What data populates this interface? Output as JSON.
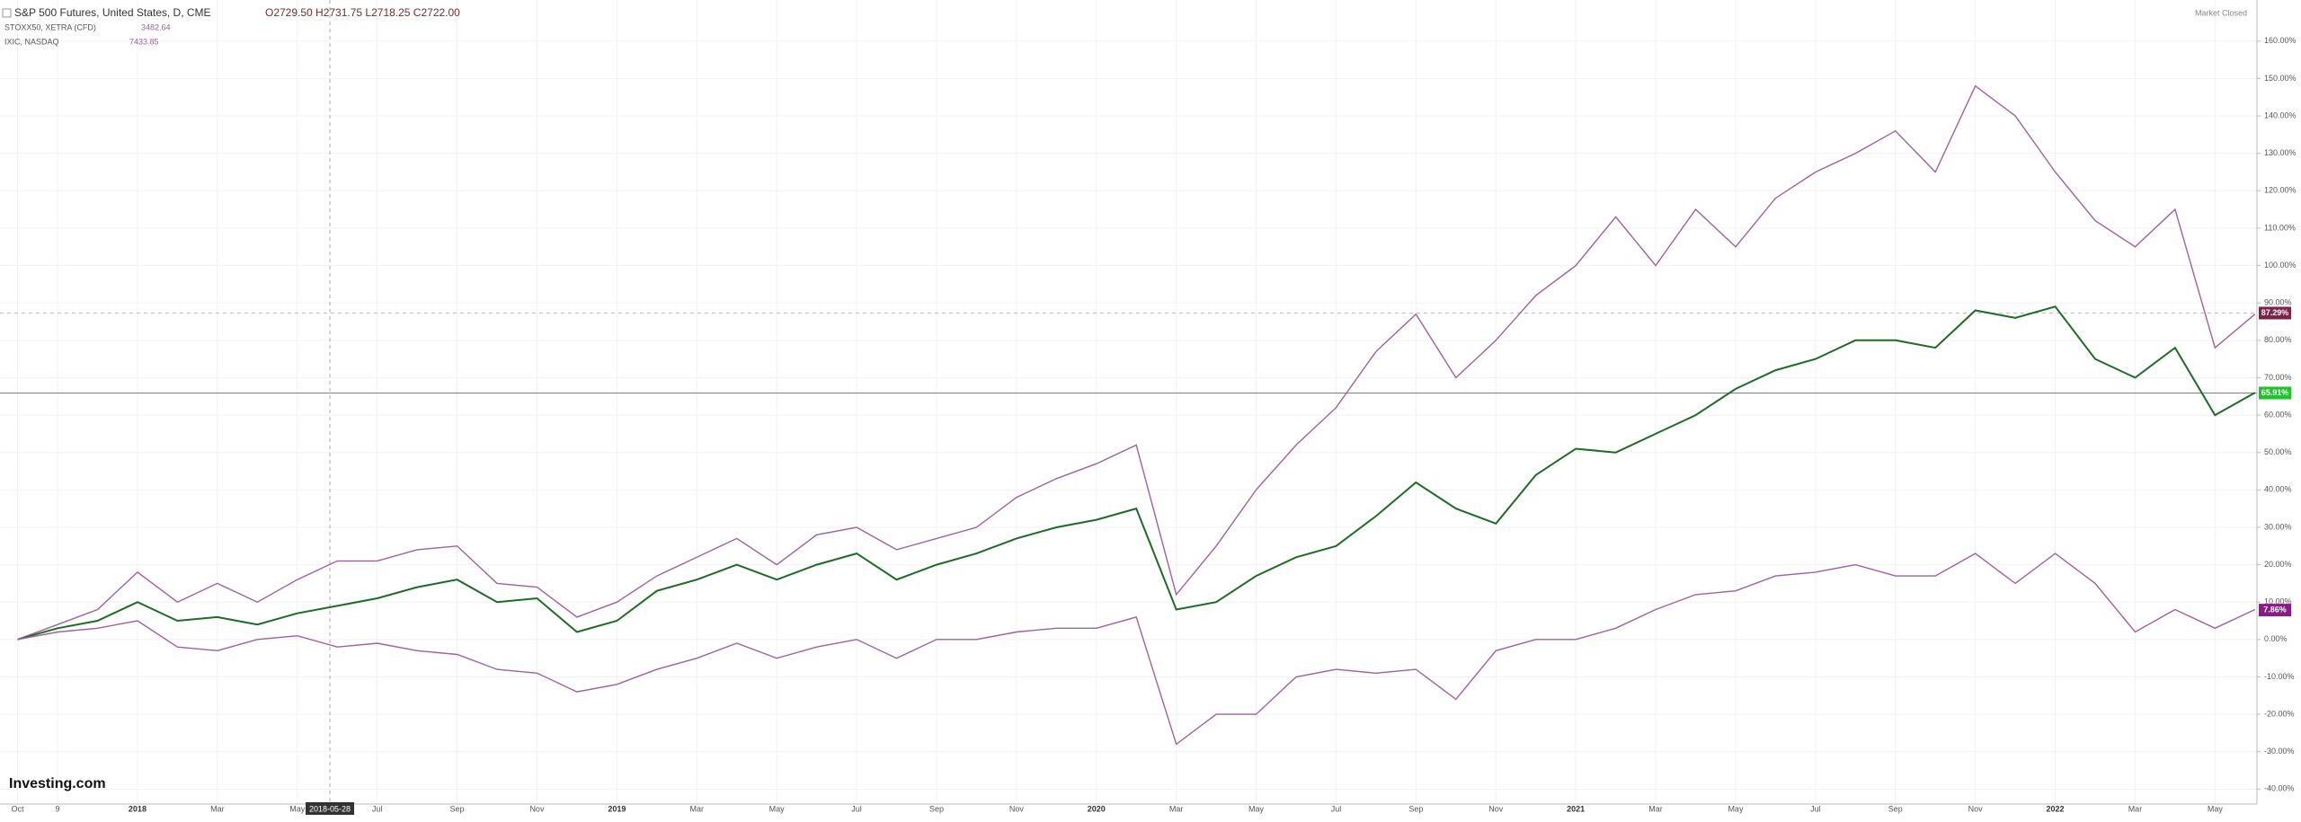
{
  "header": {
    "main_name": "S&P 500 Futures, United States, D, CME",
    "main_ohlc": "O2729.50  H2731.75  L2718.25  C2722.00",
    "compare": [
      {
        "name": "STOXX50, XETRA (CFD)",
        "value": "3482.64"
      },
      {
        "name": "IXIC, NASDAQ",
        "value": "7433.85"
      }
    ],
    "status": "Market Closed",
    "logo": "Investing.com",
    "crosshair_label": "2018-05-28"
  },
  "chart_data": {
    "type": "line",
    "categories": [
      "Oct",
      "9",
      null,
      "2018",
      null,
      "Mar",
      null,
      "May",
      null,
      "Jul",
      null,
      "Sep",
      null,
      "Nov",
      null,
      "2019",
      null,
      "Mar",
      null,
      "May",
      null,
      "Jul",
      null,
      "Sep",
      null,
      "Nov",
      null,
      "2020",
      null,
      "Mar",
      null,
      "May",
      null,
      "Jul",
      null,
      "Sep",
      null,
      "Nov",
      null,
      "2021",
      null,
      "Mar",
      null,
      "May",
      null,
      "Jul",
      null,
      "Sep",
      null,
      "Nov",
      null,
      "2022",
      null,
      "Mar",
      null,
      "May",
      null
    ],
    "series": [
      {
        "name": "IXIC, NASDAQ",
        "color": "#a0609f",
        "values": [
          0,
          4,
          8,
          18,
          10,
          15,
          10,
          16,
          21,
          21,
          24,
          25,
          15,
          14,
          6,
          10,
          17,
          22,
          27,
          20,
          28,
          30,
          24,
          27,
          30,
          38,
          43,
          47,
          52,
          12,
          25,
          40,
          52,
          62,
          77,
          87,
          70,
          80,
          92,
          100,
          113,
          100,
          115,
          105,
          118,
          125,
          130,
          136,
          125,
          148,
          140,
          125,
          112,
          105,
          115,
          78,
          87
        ]
      },
      {
        "name": "S&P 500 Futures, United States, D, CME",
        "color": "#1f6b25",
        "values": [
          0,
          3,
          5,
          10,
          5,
          6,
          4,
          7,
          9,
          11,
          14,
          16,
          10,
          11,
          2,
          5,
          13,
          16,
          20,
          16,
          20,
          23,
          16,
          20,
          23,
          27,
          30,
          32,
          35,
          8,
          10,
          17,
          22,
          25,
          33,
          42,
          35,
          31,
          44,
          51,
          50,
          55,
          60,
          67,
          72,
          75,
          80,
          80,
          78,
          88,
          86,
          89,
          75,
          70,
          78,
          60,
          66
        ]
      },
      {
        "name": "STOXX50, XETRA (CFD)",
        "color": "#a0609f",
        "values": [
          0,
          2,
          3,
          5,
          -2,
          -3,
          0,
          1,
          -2,
          -1,
          -3,
          -4,
          -8,
          -9,
          -14,
          -12,
          -8,
          -5,
          -1,
          -5,
          -2,
          0,
          -5,
          0,
          0,
          2,
          3,
          3,
          6,
          -28,
          -20,
          -20,
          -10,
          -8,
          -9,
          -8,
          -16,
          -3,
          0,
          0,
          3,
          8,
          12,
          13,
          17,
          18,
          20,
          17,
          17,
          23,
          15,
          23,
          15,
          2,
          8,
          3,
          8
        ]
      }
    ],
    "price_labels": [
      {
        "value": 87.29,
        "label": "87.29%",
        "color": "#7d2248",
        "line": "dashed"
      },
      {
        "value": 65.91,
        "label": "65.91%",
        "color": "#22c22e",
        "line": "solid"
      },
      {
        "value": 7.86,
        "label": "7.86%",
        "color": "#8b1a89"
      }
    ],
    "ylim": [
      -44,
      171
    ],
    "yticks": [
      {
        "value": 160,
        "label": "160.00%"
      },
      {
        "value": 150,
        "label": "150.00%"
      },
      {
        "value": 140,
        "label": "140.00%"
      },
      {
        "value": 130,
        "label": "130.00%"
      },
      {
        "value": 120,
        "label": "120.00%"
      },
      {
        "value": 110,
        "label": "110.00%"
      },
      {
        "value": 100,
        "label": "100.00%"
      },
      {
        "value": 90,
        "label": "90.00%"
      },
      {
        "value": 80,
        "label": "80.00%"
      },
      {
        "value": 70,
        "label": "70.00%"
      },
      {
        "value": 60,
        "label": "60.00%"
      },
      {
        "value": 50,
        "label": "50.00%"
      },
      {
        "value": 40,
        "label": "40.00%"
      },
      {
        "value": 30,
        "label": "30.00%"
      },
      {
        "value": 20,
        "label": "20.00%"
      },
      {
        "value": 10,
        "label": "10.00%"
      },
      {
        "value": 0,
        "label": "0.00%"
      },
      {
        "value": -10,
        "label": "-10.00%"
      },
      {
        "value": -20,
        "label": "-20.00%"
      },
      {
        "value": -30,
        "label": "-30.00%"
      },
      {
        "value": -40,
        "label": "-40.00%"
      }
    ],
    "grid": true
  }
}
